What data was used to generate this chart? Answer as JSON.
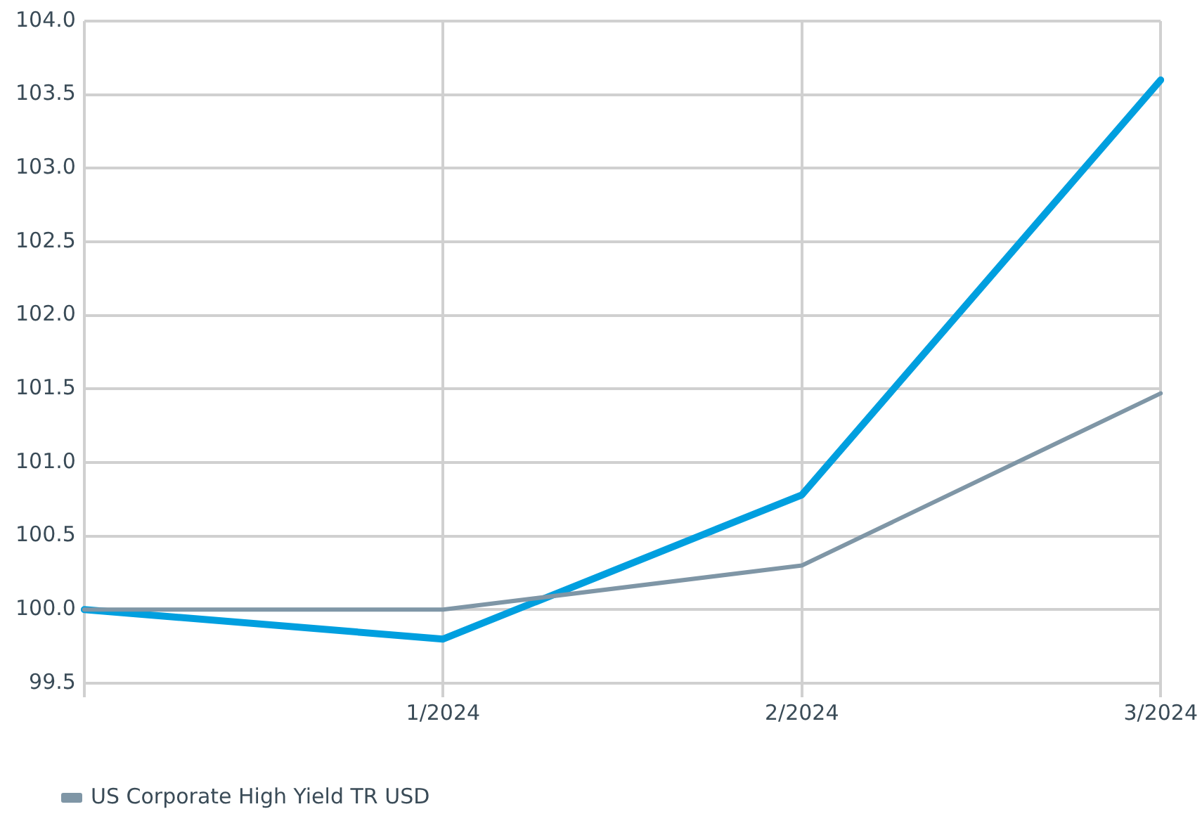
{
  "chart_data": {
    "type": "line",
    "categories": [
      null,
      "1/2024",
      "2/2024",
      "3/2024"
    ],
    "series": [
      {
        "color": "#009fdf",
        "values": [
          100.0,
          99.8,
          100.78,
          103.6
        ]
      },
      {
        "name": "US Corporate High Yield TR USD",
        "color": "#7f96a6",
        "values": [
          100.0,
          100.0,
          100.3,
          101.47
        ]
      }
    ],
    "ylim": [
      99.5,
      104.0
    ],
    "yticks": [
      {
        "value": 99.5,
        "label": "99.5"
      },
      {
        "value": 100,
        "label": "100.0"
      },
      {
        "value": 100.5,
        "label": "100.5"
      },
      {
        "value": 101,
        "label": "101.0"
      },
      {
        "value": 101.5,
        "label": "101.5"
      },
      {
        "value": 102,
        "label": "102.0"
      },
      {
        "value": 102.5,
        "label": "102.5"
      },
      {
        "value": 103,
        "label": "103.0"
      },
      {
        "value": 103.5,
        "label": "103.5"
      },
      {
        "value": 104,
        "label": "104.0"
      }
    ],
    "grid": true,
    "legend": "bottom",
    "marker": "none",
    "line_style": "solid"
  }
}
